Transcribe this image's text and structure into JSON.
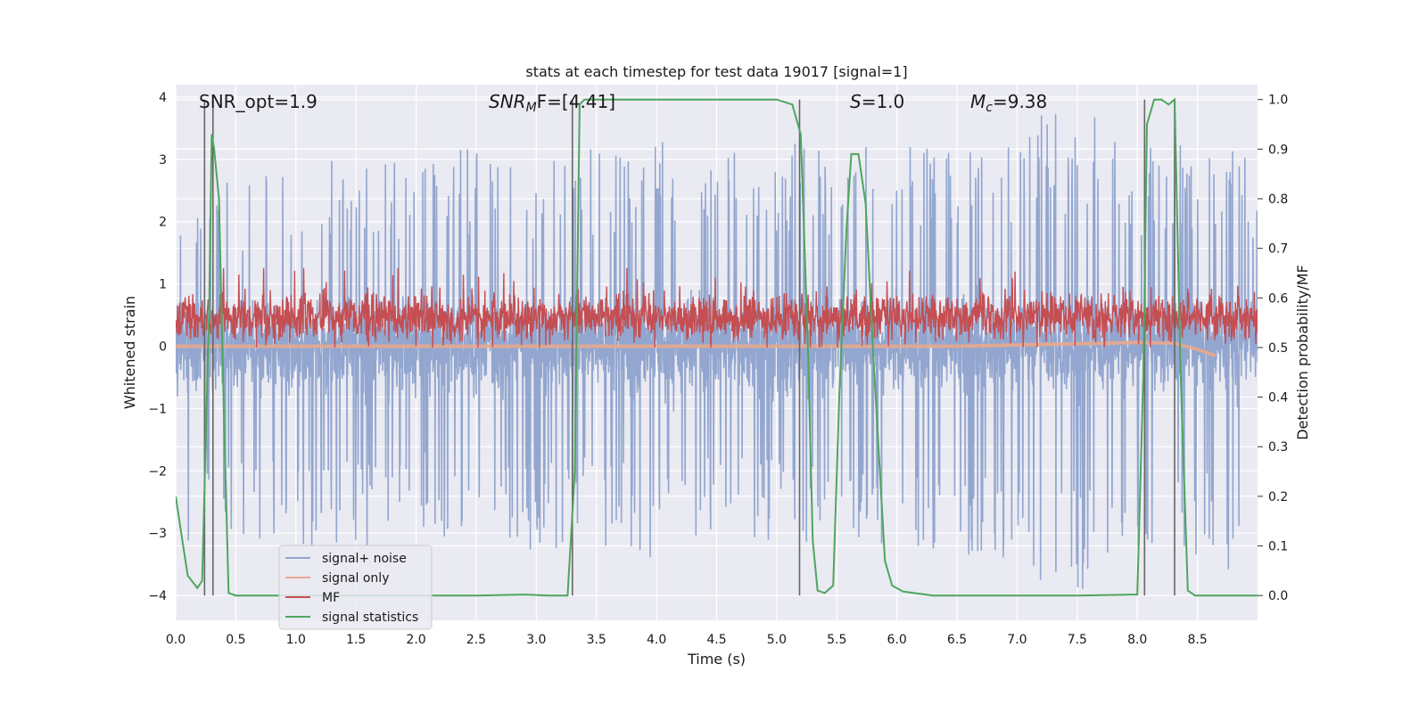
{
  "chart_data": {
    "type": "line",
    "title": "stats at each timestep for test data 19017 [signal=1]",
    "xlabel": "Time (s)",
    "ylabel": "Whitened strain",
    "ylabel_right": "Detection probability/MF",
    "xlim": [
      0,
      9.0
    ],
    "ylim": [
      -4.4,
      4.2
    ],
    "ylim_right": [
      -0.05,
      1.03
    ],
    "x_ticks": [
      0.0,
      0.5,
      1.0,
      1.5,
      2.0,
      2.5,
      3.0,
      3.5,
      4.0,
      4.5,
      5.0,
      5.5,
      6.0,
      6.5,
      7.0,
      7.5,
      8.0,
      8.5
    ],
    "x_tick_labels": [
      "0.0",
      "0.5",
      "1.0",
      "1.5",
      "2.0",
      "2.5",
      "3.0",
      "3.5",
      "4.0",
      "4.5",
      "5.0",
      "5.5",
      "6.0",
      "6.5",
      "7.0",
      "7.5",
      "8.0",
      "8.5"
    ],
    "y_ticks": [
      4,
      3,
      2,
      1,
      0,
      -1,
      -2,
      -3,
      -4
    ],
    "y_tick_labels": [
      "4",
      "3",
      "2",
      "1",
      "0",
      "−1",
      "−2",
      "−3",
      "−4"
    ],
    "y_right_ticks": [
      1.0,
      0.9,
      0.8,
      0.7,
      0.6,
      0.5,
      0.4,
      0.3,
      0.2,
      0.1,
      0.0
    ],
    "y_right_tick_labels": [
      "1.0",
      "0.9",
      "0.8",
      "0.7",
      "0.6",
      "0.5",
      "0.4",
      "0.3",
      "0.2",
      "0.1",
      "0.0"
    ],
    "grid": true,
    "legend_position": "lower-left",
    "annotations": {
      "snr_opt": "SNR_opt=1.9",
      "snr_mf_sym": "SNR",
      "snr_mf_sub": "M",
      "snr_mf_rest": "F=[4.41]",
      "s_sym": "S",
      "s_rest": "=1.0",
      "mc_sym": "M",
      "mc_sub": "c",
      "mc_rest": "=9.38"
    },
    "series": [
      {
        "name": "signal+ noise",
        "color": "#92a6cf",
        "axis": "left",
        "envelope": {
          "x": [
            0.0,
            0.5,
            1.0,
            1.5,
            2.0,
            2.5,
            3.0,
            3.5,
            4.0,
            4.5,
            5.0,
            5.5,
            6.0,
            6.5,
            7.0,
            7.5,
            8.0,
            8.5,
            9.0
          ],
          "upper": [
            2.6,
            2.7,
            3.0,
            3.1,
            3.0,
            3.2,
            2.9,
            3.2,
            3.3,
            3.1,
            3.3,
            3.2,
            3.3,
            3.1,
            3.6,
            3.9,
            3.2,
            3.3,
            3.0
          ],
          "lower": [
            -3.4,
            -3.0,
            -3.2,
            -3.3,
            -3.0,
            -3.1,
            -3.3,
            -3.2,
            -3.4,
            -3.0,
            -3.3,
            -3.2,
            -3.5,
            -3.3,
            -3.6,
            -4.0,
            -3.3,
            -3.6,
            -3.7
          ]
        }
      },
      {
        "name": "signal only",
        "color": "#e8a88d",
        "axis": "left",
        "x": [
          0.0,
          6.5,
          7.0,
          7.5,
          8.0,
          8.3,
          8.5,
          8.65
        ],
        "y": [
          0.0,
          0.0,
          0.02,
          0.04,
          0.06,
          0.05,
          -0.05,
          -0.15
        ]
      },
      {
        "name": "MF",
        "color": "#c44e52",
        "axis": "right",
        "center": 0.56,
        "spread": 0.04
      },
      {
        "name": "signal statistics",
        "color": "#4ea55e",
        "axis": "right",
        "x": [
          0.0,
          0.05,
          0.1,
          0.18,
          0.22,
          0.28,
          0.3,
          0.32,
          0.36,
          0.4,
          0.44,
          0.5,
          1.0,
          2.0,
          2.5,
          2.9,
          3.0,
          3.1,
          3.26,
          3.32,
          3.36,
          3.4,
          4.0,
          4.5,
          5.0,
          5.13,
          5.2,
          5.26,
          5.3,
          5.34,
          5.4,
          5.47,
          5.52,
          5.58,
          5.62,
          5.68,
          5.74,
          5.8,
          5.9,
          5.96,
          6.05,
          6.3,
          7.0,
          7.5,
          8.0,
          8.05,
          8.08,
          8.14,
          8.2,
          8.26,
          8.31,
          8.36,
          8.42,
          8.48,
          8.6,
          9.0
        ],
        "y": [
          0.2,
          0.12,
          0.04,
          0.015,
          0.03,
          0.6,
          0.93,
          0.9,
          0.8,
          0.38,
          0.005,
          0.0,
          0.0,
          0.0,
          0.0,
          0.002,
          0.001,
          0.0,
          0.0,
          0.25,
          0.99,
          1.0,
          1.0,
          1.0,
          1.0,
          0.99,
          0.93,
          0.5,
          0.11,
          0.01,
          0.005,
          0.02,
          0.4,
          0.74,
          0.89,
          0.89,
          0.79,
          0.5,
          0.07,
          0.02,
          0.008,
          0.0,
          0.0,
          0.0,
          0.002,
          0.45,
          0.95,
          1.0,
          1.0,
          0.99,
          1.0,
          0.45,
          0.01,
          0.0,
          0.0,
          0.0
        ]
      }
    ],
    "vertical_lines": {
      "color": "#666666",
      "x": [
        0.24,
        0.31,
        3.3,
        5.19,
        8.06,
        8.31
      ]
    }
  }
}
